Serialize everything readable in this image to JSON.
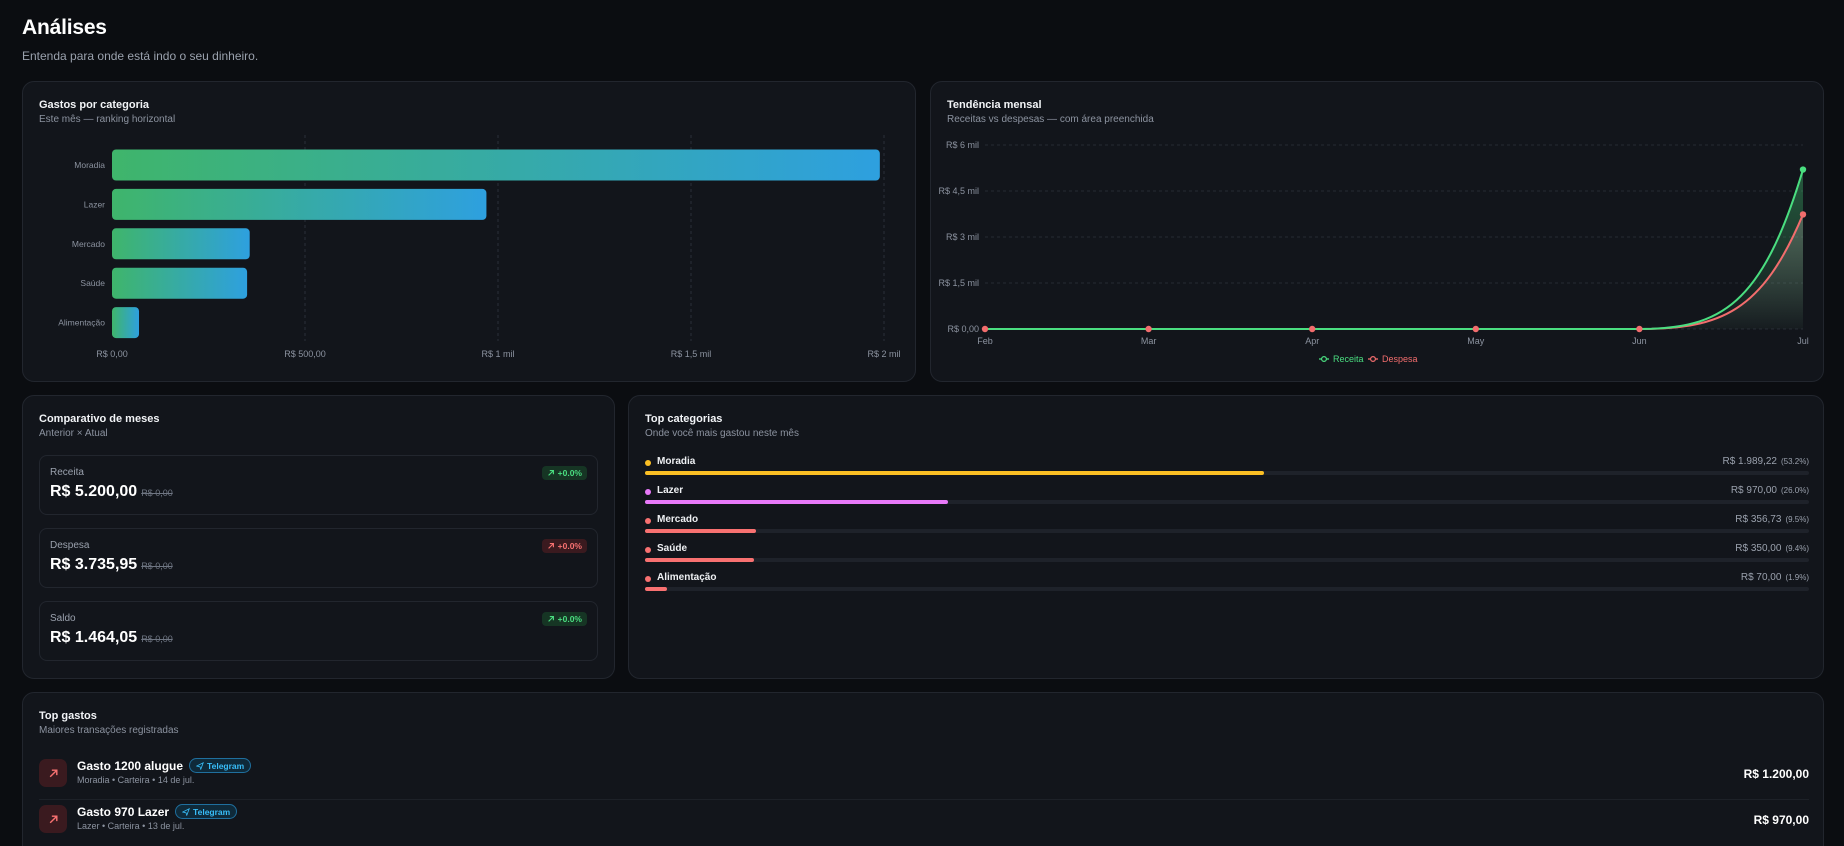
{
  "page": {
    "title": "Análises",
    "subtitle": "Entenda para onde está indo o seu dinheiro."
  },
  "gastos_card": {
    "title": "Gastos por categoria",
    "subtitle": "Este mês — ranking horizontal"
  },
  "tendencia_card": {
    "title": "Tendência mensal",
    "subtitle": "Receitas vs despesas — com área preenchida"
  },
  "comparativo": {
    "title": "Comparativo de meses",
    "subtitle": "Anterior × Atual",
    "items": [
      {
        "label": "Receita",
        "value": "R$ 5.200,00",
        "previous": "R$ 0,00",
        "badge": "+0.0%",
        "trend": "up",
        "color": "#4ade80"
      },
      {
        "label": "Despesa",
        "value": "R$ 3.735,95",
        "previous": "R$ 0,00",
        "badge": "+0.0%",
        "trend": "down",
        "color": "#f87171"
      },
      {
        "label": "Saldo",
        "value": "R$ 1.464,05",
        "previous": "R$ 0,00",
        "badge": "+0.0%",
        "trend": "up",
        "color": "#4ade80"
      }
    ]
  },
  "top_categorias": {
    "title": "Top categorias",
    "subtitle": "Onde você mais gastou neste mês",
    "items": [
      {
        "name": "Moradia",
        "amount": "R$ 1.989,22",
        "pct": "(53.2%)",
        "share": 0.532,
        "color": "#fbbf24"
      },
      {
        "name": "Lazer",
        "amount": "R$ 970,00",
        "pct": "(26.0%)",
        "share": 0.26,
        "color": "#e879f9"
      },
      {
        "name": "Mercado",
        "amount": "R$ 356,73",
        "pct": "(9.5%)",
        "share": 0.095,
        "color": "#f87171"
      },
      {
        "name": "Saúde",
        "amount": "R$ 350,00",
        "pct": "(9.4%)",
        "share": 0.094,
        "color": "#f87171"
      },
      {
        "name": "Alimentação",
        "amount": "R$ 70,00",
        "pct": "(1.9%)",
        "share": 0.019,
        "color": "#f87171"
      }
    ]
  },
  "top_gastos": {
    "title": "Top gastos",
    "subtitle": "Maiores transações registradas",
    "items": [
      {
        "title": "Gasto 1200 alugue",
        "tag": "Telegram",
        "meta": "Moradia • Carteira • 14 de jul.",
        "amount": "R$ 1.200,00"
      },
      {
        "title": "Gasto 970 Lazer",
        "tag": "Telegram",
        "meta": "Lazer • Carteira • 13 de jul.",
        "amount": "R$ 970,00"
      }
    ]
  },
  "chart_data": [
    {
      "type": "bar",
      "orientation": "horizontal",
      "categories": [
        "Moradia",
        "Lazer",
        "Mercado",
        "Saúde",
        "Alimentação"
      ],
      "values": [
        1989.22,
        970.0,
        356.73,
        350.0,
        70.0
      ],
      "xlim": [
        0,
        2000
      ],
      "xticks": [
        0,
        500,
        1000,
        1500,
        2000
      ],
      "xtick_labels": [
        "R$ 0,00",
        "R$ 500,00",
        "R$ 1 mil",
        "R$ 1,5 mil",
        "R$ 2 mil"
      ],
      "grid": true,
      "colors": {
        "start": "#3fb56b",
        "end": "#2ea0df"
      }
    },
    {
      "type": "area",
      "x": [
        "Feb",
        "Mar",
        "Apr",
        "May",
        "Jun",
        "Jul"
      ],
      "series": [
        {
          "name": "Receita",
          "values": [
            0,
            0,
            0,
            0,
            0,
            5200
          ],
          "color": "#4ade80"
        },
        {
          "name": "Despesa",
          "values": [
            0,
            0,
            0,
            0,
            0,
            3735.95
          ],
          "color": "#f26d6d"
        }
      ],
      "ylim": [
        0,
        6000
      ],
      "yticks": [
        0,
        1500,
        3000,
        4500,
        6000
      ],
      "ytick_labels": [
        "R$ 0,00",
        "R$ 1,5 mil",
        "R$ 3 mil",
        "R$ 4,5 mil",
        "R$ 6 mil"
      ],
      "legend": "bottom-center",
      "grid": true
    }
  ]
}
